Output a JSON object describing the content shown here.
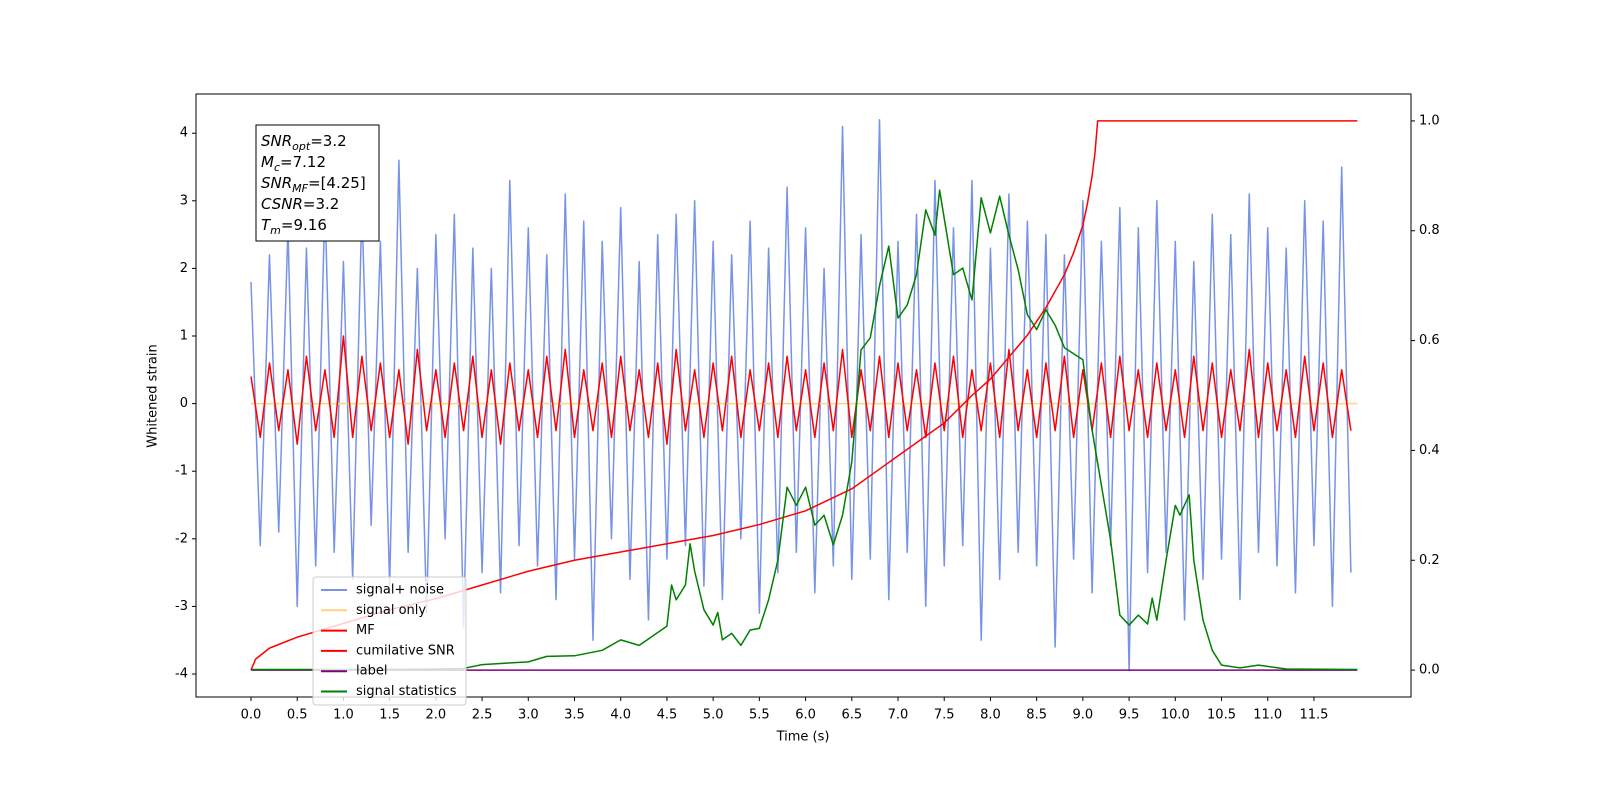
{
  "chart_data": {
    "type": "line",
    "xlabel": "Time (s)",
    "ylabel": "Whitened strain",
    "xlim": [
      -0.595,
      12.55
    ],
    "ylim": [
      -4.34,
      4.58
    ],
    "y2lim": [
      -0.049,
      1.049
    ],
    "xticks": [
      {
        "value": 0,
        "label": "0.0"
      },
      {
        "value": 0.5,
        "label": "0.5"
      },
      {
        "value": 1,
        "label": "1.0"
      },
      {
        "value": 1.5,
        "label": "1.5"
      },
      {
        "value": 2,
        "label": "2.0"
      },
      {
        "value": 2.5,
        "label": "2.5"
      },
      {
        "value": 3,
        "label": "3.0"
      },
      {
        "value": 3.5,
        "label": "3.5"
      },
      {
        "value": 4,
        "label": "4.0"
      },
      {
        "value": 4.5,
        "label": "4.5"
      },
      {
        "value": 5,
        "label": "5.0"
      },
      {
        "value": 5.5,
        "label": "5.5"
      },
      {
        "value": 6,
        "label": "6.0"
      },
      {
        "value": 6.5,
        "label": "6.5"
      },
      {
        "value": 7,
        "label": "7.0"
      },
      {
        "value": 7.5,
        "label": "7.5"
      },
      {
        "value": 8,
        "label": "8.0"
      },
      {
        "value": 8.5,
        "label": "8.5"
      },
      {
        "value": 9,
        "label": "9.0"
      },
      {
        "value": 9.5,
        "label": "9.5"
      },
      {
        "value": 10,
        "label": "10.0"
      },
      {
        "value": 10.5,
        "label": "10.5"
      },
      {
        "value": 11,
        "label": "11.0"
      },
      {
        "value": 11.5,
        "label": "11.5"
      }
    ],
    "yticks": [
      -4,
      -3,
      -2,
      -1,
      0,
      1,
      2,
      3,
      4
    ],
    "y2ticks": [
      {
        "value": 0,
        "label": "0.0"
      },
      {
        "value": 0.2,
        "label": "0.2"
      },
      {
        "value": 0.4,
        "label": "0.4"
      },
      {
        "value": 0.6,
        "label": "0.6"
      },
      {
        "value": 0.8,
        "label": "0.8"
      },
      {
        "value": 1,
        "label": "1.0"
      }
    ],
    "grid": false,
    "legend": "lower left",
    "annotation": [
      {
        "main": "SNR",
        "sub": "opt",
        "rest": "=3.2"
      },
      {
        "main": "M",
        "sub": "c",
        "rest": "=7.12"
      },
      {
        "main": "SNR",
        "sub": "MF",
        "rest": "=[4.25]"
      },
      {
        "main": "CSNR",
        "sub": "",
        "rest": "=3.2"
      },
      {
        "main": "T",
        "sub": "m",
        "rest": "=9.16"
      }
    ],
    "x": [
      0.0,
      0.1,
      0.2,
      0.3,
      0.4,
      0.5,
      0.6,
      0.7,
      0.8,
      0.9,
      1.0,
      1.1,
      1.2,
      1.3,
      1.4,
      1.5,
      1.6,
      1.7,
      1.8,
      1.9,
      2.0,
      2.1,
      2.2,
      2.3,
      2.4,
      2.5,
      2.6,
      2.7,
      2.8,
      2.9,
      3.0,
      3.1,
      3.2,
      3.3,
      3.4,
      3.5,
      3.6,
      3.7,
      3.8,
      3.9,
      4.0,
      4.1,
      4.2,
      4.3,
      4.4,
      4.5,
      4.6,
      4.7,
      4.8,
      4.9,
      5.0,
      5.1,
      5.2,
      5.3,
      5.4,
      5.5,
      5.6,
      5.7,
      5.8,
      5.9,
      6.0,
      6.1,
      6.2,
      6.3,
      6.4,
      6.5,
      6.6,
      6.7,
      6.8,
      6.9,
      7.0,
      7.1,
      7.2,
      7.3,
      7.4,
      7.5,
      7.6,
      7.7,
      7.8,
      7.9,
      8.0,
      8.1,
      8.2,
      8.3,
      8.4,
      8.5,
      8.6,
      8.7,
      8.8,
      8.9,
      9.0,
      9.1,
      9.2,
      9.3,
      9.4,
      9.5,
      9.6,
      9.7,
      9.8,
      9.9,
      10.0,
      10.1,
      10.2,
      10.3,
      10.4,
      10.5,
      10.6,
      10.7,
      10.8,
      10.9,
      11.0,
      11.1,
      11.2,
      11.3,
      11.4,
      11.5,
      11.6,
      11.7,
      11.8,
      11.9
    ],
    "series": [
      {
        "name": "signal+ noise",
        "color": "#7893e6",
        "values": [
          1.8,
          -2.1,
          2.2,
          -1.9,
          2.6,
          -3.0,
          2.3,
          -2.4,
          3.0,
          -2.2,
          2.1,
          -2.6,
          2.9,
          -1.8,
          2.4,
          -2.7,
          3.6,
          -2.2,
          2.0,
          -3.1,
          2.5,
          -2.0,
          2.8,
          -3.3,
          2.3,
          -2.5,
          2.0,
          -2.8,
          3.3,
          -2.1,
          2.6,
          -2.4,
          2.2,
          -2.9,
          3.1,
          -2.3,
          2.7,
          -3.5,
          2.4,
          -2.0,
          2.9,
          -2.6,
          2.1,
          -3.2,
          2.5,
          -2.3,
          2.8,
          -2.1,
          3.0,
          -2.7,
          2.4,
          -2.9,
          2.2,
          -2.0,
          2.7,
          -3.1,
          2.3,
          -2.5,
          3.2,
          -2.2,
          2.6,
          -2.8,
          2.0,
          -2.4,
          4.1,
          -2.6,
          2.5,
          -2.3,
          4.2,
          -2.9,
          2.4,
          -2.2,
          2.8,
          -3.0,
          3.3,
          -2.4,
          2.6,
          -2.1,
          3.3,
          -3.5,
          2.3,
          -2.6,
          3.1,
          -2.2,
          2.7,
          -2.4,
          2.5,
          -3.6,
          2.2,
          -2.3,
          3.0,
          -2.8,
          2.4,
          -2.1,
          2.9,
          -3.95,
          2.6,
          -2.5,
          3.0,
          -2.2,
          2.4,
          -3.2,
          2.1,
          -2.6,
          2.8,
          -2.3,
          2.5,
          -2.9,
          3.1,
          -2.2,
          2.6,
          -2.4,
          2.3,
          -2.8,
          3.0,
          -2.1,
          2.7,
          -3.0,
          3.5,
          -2.5
        ]
      },
      {
        "name": "signal only",
        "color": "#ffd27f",
        "x": [
          0,
          11.97
        ],
        "values": [
          0,
          0
        ]
      },
      {
        "name": "MF",
        "color": "#ff0000",
        "values": [
          0.4,
          -0.5,
          0.6,
          -0.4,
          0.5,
          -0.6,
          0.7,
          -0.4,
          0.5,
          -0.5,
          1.0,
          -0.5,
          0.7,
          -0.4,
          0.6,
          -0.5,
          0.5,
          -0.6,
          0.8,
          -0.4,
          0.5,
          -0.5,
          0.6,
          -0.4,
          0.7,
          -0.5,
          0.5,
          -0.6,
          0.6,
          -0.4,
          0.5,
          -0.5,
          0.7,
          -0.4,
          0.8,
          -0.5,
          0.5,
          -0.4,
          0.6,
          -0.5,
          0.7,
          -0.4,
          0.5,
          -0.5,
          0.6,
          -0.6,
          0.8,
          -0.4,
          0.5,
          -0.5,
          0.6,
          -0.4,
          0.7,
          -0.5,
          0.5,
          -0.4,
          0.6,
          -0.5,
          0.7,
          -0.4,
          0.5,
          -0.5,
          0.6,
          -0.4,
          0.8,
          -0.5,
          0.5,
          -0.4,
          0.7,
          -0.5,
          0.6,
          -0.4,
          0.5,
          -0.5,
          0.6,
          -0.4,
          0.7,
          -0.5,
          0.5,
          -0.4,
          0.6,
          -0.5,
          0.8,
          -0.4,
          0.5,
          -0.5,
          0.6,
          -0.4,
          0.7,
          -0.5,
          0.5,
          -0.4,
          0.6,
          -0.5,
          0.7,
          -0.4,
          0.5,
          -0.5,
          0.6,
          -0.4,
          0.5,
          -0.5,
          0.7,
          -0.4,
          0.6,
          -0.5,
          0.5,
          -0.4,
          0.8,
          -0.5,
          0.6,
          -0.4,
          0.5,
          -0.5,
          0.7,
          -0.4,
          0.6,
          -0.5,
          0.5,
          -0.4
        ]
      },
      {
        "name": "cumilative SNR",
        "color": "#ff0000",
        "axis": "y2",
        "x": [
          0,
          0.05,
          0.2,
          0.5,
          1,
          1.5,
          2,
          2.5,
          3,
          3.5,
          4,
          4.5,
          5,
          5.5,
          6,
          6.5,
          7,
          7.5,
          7.8,
          8,
          8.2,
          8.4,
          8.6,
          8.8,
          8.9,
          9.0,
          9.05,
          9.1,
          9.13,
          9.16,
          11.97
        ],
        "values": [
          0,
          0.02,
          0.04,
          0.06,
          0.085,
          0.11,
          0.13,
          0.155,
          0.18,
          0.2,
          0.215,
          0.23,
          0.245,
          0.265,
          0.29,
          0.33,
          0.39,
          0.45,
          0.5,
          0.53,
          0.57,
          0.61,
          0.66,
          0.72,
          0.76,
          0.81,
          0.85,
          0.9,
          0.94,
          1.0,
          1.0
        ]
      },
      {
        "name": "label",
        "color": "#800080",
        "axis": "y2",
        "x": [
          0,
          11.97
        ],
        "values": [
          0,
          0
        ]
      },
      {
        "name": "signal statistics",
        "color": "#008000",
        "axis": "y2",
        "x": [
          0,
          1,
          2,
          2.3,
          2.5,
          3,
          3.2,
          3.5,
          3.8,
          4.0,
          4.2,
          4.5,
          4.55,
          4.6,
          4.7,
          4.75,
          4.8,
          4.9,
          5.0,
          5.05,
          5.1,
          5.2,
          5.3,
          5.4,
          5.5,
          5.6,
          5.7,
          5.8,
          5.9,
          6.0,
          6.1,
          6.2,
          6.3,
          6.4,
          6.5,
          6.6,
          6.7,
          6.8,
          6.9,
          7.0,
          7.1,
          7.2,
          7.3,
          7.4,
          7.45,
          7.6,
          7.7,
          7.8,
          7.9,
          8.0,
          8.1,
          8.2,
          8.3,
          8.4,
          8.5,
          8.6,
          8.7,
          8.8,
          9.0,
          9.1,
          9.3,
          9.4,
          9.5,
          9.6,
          9.7,
          9.75,
          9.8,
          9.9,
          10.0,
          10.05,
          10.15,
          10.2,
          10.3,
          10.4,
          10.5,
          10.7,
          10.9,
          11.2,
          11.97
        ],
        "values": [
          0.001,
          0.001,
          0.002,
          0.003,
          0.01,
          0.015,
          0.025,
          0.026,
          0.036,
          0.055,
          0.045,
          0.08,
          0.155,
          0.128,
          0.155,
          0.23,
          0.18,
          0.11,
          0.082,
          0.105,
          0.055,
          0.067,
          0.045,
          0.073,
          0.076,
          0.128,
          0.2,
          0.333,
          0.3,
          0.333,
          0.264,
          0.282,
          0.228,
          0.282,
          0.379,
          0.583,
          0.605,
          0.7,
          0.772,
          0.641,
          0.665,
          0.72,
          0.838,
          0.792,
          0.874,
          0.72,
          0.732,
          0.674,
          0.86,
          0.796,
          0.863,
          0.792,
          0.729,
          0.647,
          0.62,
          0.656,
          0.628,
          0.587,
          0.565,
          0.437,
          0.237,
          0.1,
          0.082,
          0.1,
          0.084,
          0.131,
          0.091,
          0.2,
          0.3,
          0.282,
          0.319,
          0.2,
          0.091,
          0.036,
          0.009,
          0.004,
          0.009,
          0.002,
          0.001
        ]
      }
    ]
  }
}
